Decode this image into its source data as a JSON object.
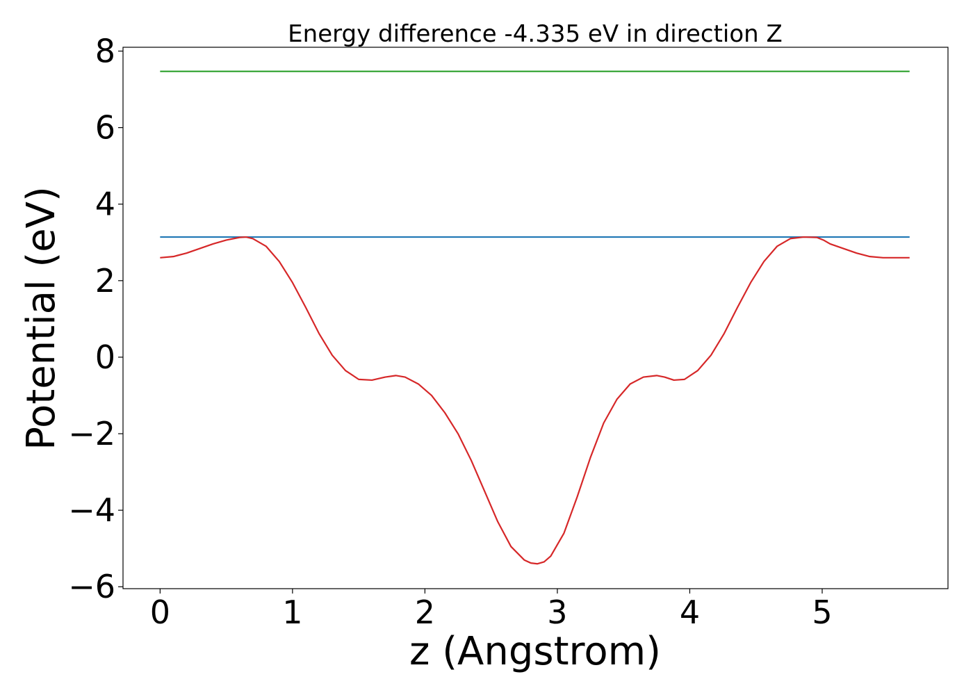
{
  "chart_data": {
    "type": "line",
    "title": "Energy difference -4.335 eV in direction Z",
    "xlabel": "z (Angstrom)",
    "ylabel": "Potential (eV)",
    "xlim": [
      -0.28,
      5.95
    ],
    "ylim": [
      -6.05,
      8.1
    ],
    "xticks": [
      0,
      1,
      2,
      3,
      4,
      5
    ],
    "yticks": [
      -6,
      -4,
      -2,
      0,
      2,
      4,
      6,
      8
    ],
    "xtick_labels": [
      "0",
      "1",
      "2",
      "3",
      "4",
      "5"
    ],
    "ytick_labels": [
      "−6",
      "−4",
      "−2",
      "0",
      "2",
      "4",
      "6",
      "8"
    ],
    "grid": false,
    "series": [
      {
        "color": "#2ca02c",
        "x": [
          0,
          5.66
        ],
        "y": [
          7.47,
          7.47
        ]
      },
      {
        "color": "#1f77b4",
        "x": [
          0,
          5.66
        ],
        "y": [
          3.14,
          3.14
        ]
      },
      {
        "color": "#d62728",
        "x": [
          0,
          0.1,
          0.2,
          0.3,
          0.4,
          0.5,
          0.6,
          0.65,
          0.7,
          0.8,
          0.9,
          1.0,
          1.1,
          1.2,
          1.3,
          1.4,
          1.5,
          1.6,
          1.7,
          1.78,
          1.85,
          1.95,
          2.05,
          2.15,
          2.25,
          2.35,
          2.45,
          2.55,
          2.65,
          2.75,
          2.8,
          2.85,
          2.9,
          2.95,
          3.05,
          3.15,
          3.25,
          3.35,
          3.45,
          3.55,
          3.65,
          3.75,
          3.81,
          3.88,
          3.96,
          4.06,
          4.16,
          4.26,
          4.36,
          4.46,
          4.56,
          4.66,
          4.76,
          4.86,
          4.96,
          5.01,
          5.06,
          5.16,
          5.26,
          5.36,
          5.46,
          5.56,
          5.66
        ],
        "y": [
          2.6,
          2.63,
          2.72,
          2.84,
          2.96,
          3.06,
          3.13,
          3.14,
          3.1,
          2.9,
          2.5,
          1.95,
          1.3,
          0.62,
          0.05,
          -0.35,
          -0.58,
          -0.6,
          -0.52,
          -0.48,
          -0.52,
          -0.7,
          -1.0,
          -1.45,
          -2.0,
          -2.7,
          -3.5,
          -4.3,
          -4.95,
          -5.3,
          -5.38,
          -5.4,
          -5.35,
          -5.2,
          -4.6,
          -3.65,
          -2.62,
          -1.72,
          -1.1,
          -0.7,
          -0.52,
          -0.48,
          -0.52,
          -0.6,
          -0.58,
          -0.35,
          0.05,
          0.62,
          1.3,
          1.95,
          2.5,
          2.9,
          3.1,
          3.14,
          3.13,
          3.06,
          2.96,
          2.84,
          2.72,
          2.63,
          2.6,
          2.6,
          2.6
        ]
      }
    ]
  }
}
